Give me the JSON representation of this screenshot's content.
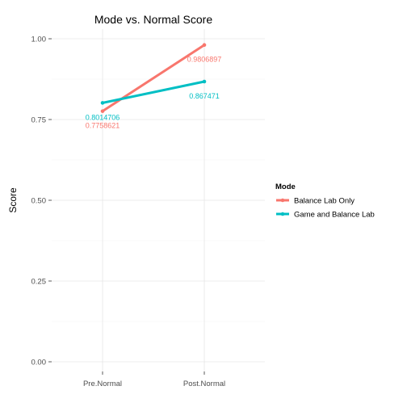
{
  "chart_data": {
    "type": "line",
    "title": "Mode vs. Normal Score",
    "xlabel": "",
    "ylabel": "Score",
    "categories": [
      "Pre.Normal",
      "Post.Normal"
    ],
    "ylim": [
      -0.03,
      1.03
    ],
    "yticks": [
      "0.00",
      "0.25",
      "0.50",
      "0.75",
      "1.00"
    ],
    "ytick_values": [
      0,
      0.25,
      0.5,
      0.75,
      1.0
    ],
    "grid": true,
    "legend": {
      "title": "Mode",
      "placement": "right"
    },
    "series": [
      {
        "name": "Balance Lab Only",
        "color": "#F8766D",
        "values": [
          0.7758621,
          0.9806897
        ],
        "labels": [
          "0.7758621",
          "0.9806897"
        ]
      },
      {
        "name": "Game and Balance Lab",
        "color": "#00BFC4",
        "values": [
          0.8014706,
          0.867471
        ],
        "labels": [
          "0.8014706",
          "0.867471"
        ]
      }
    ]
  }
}
